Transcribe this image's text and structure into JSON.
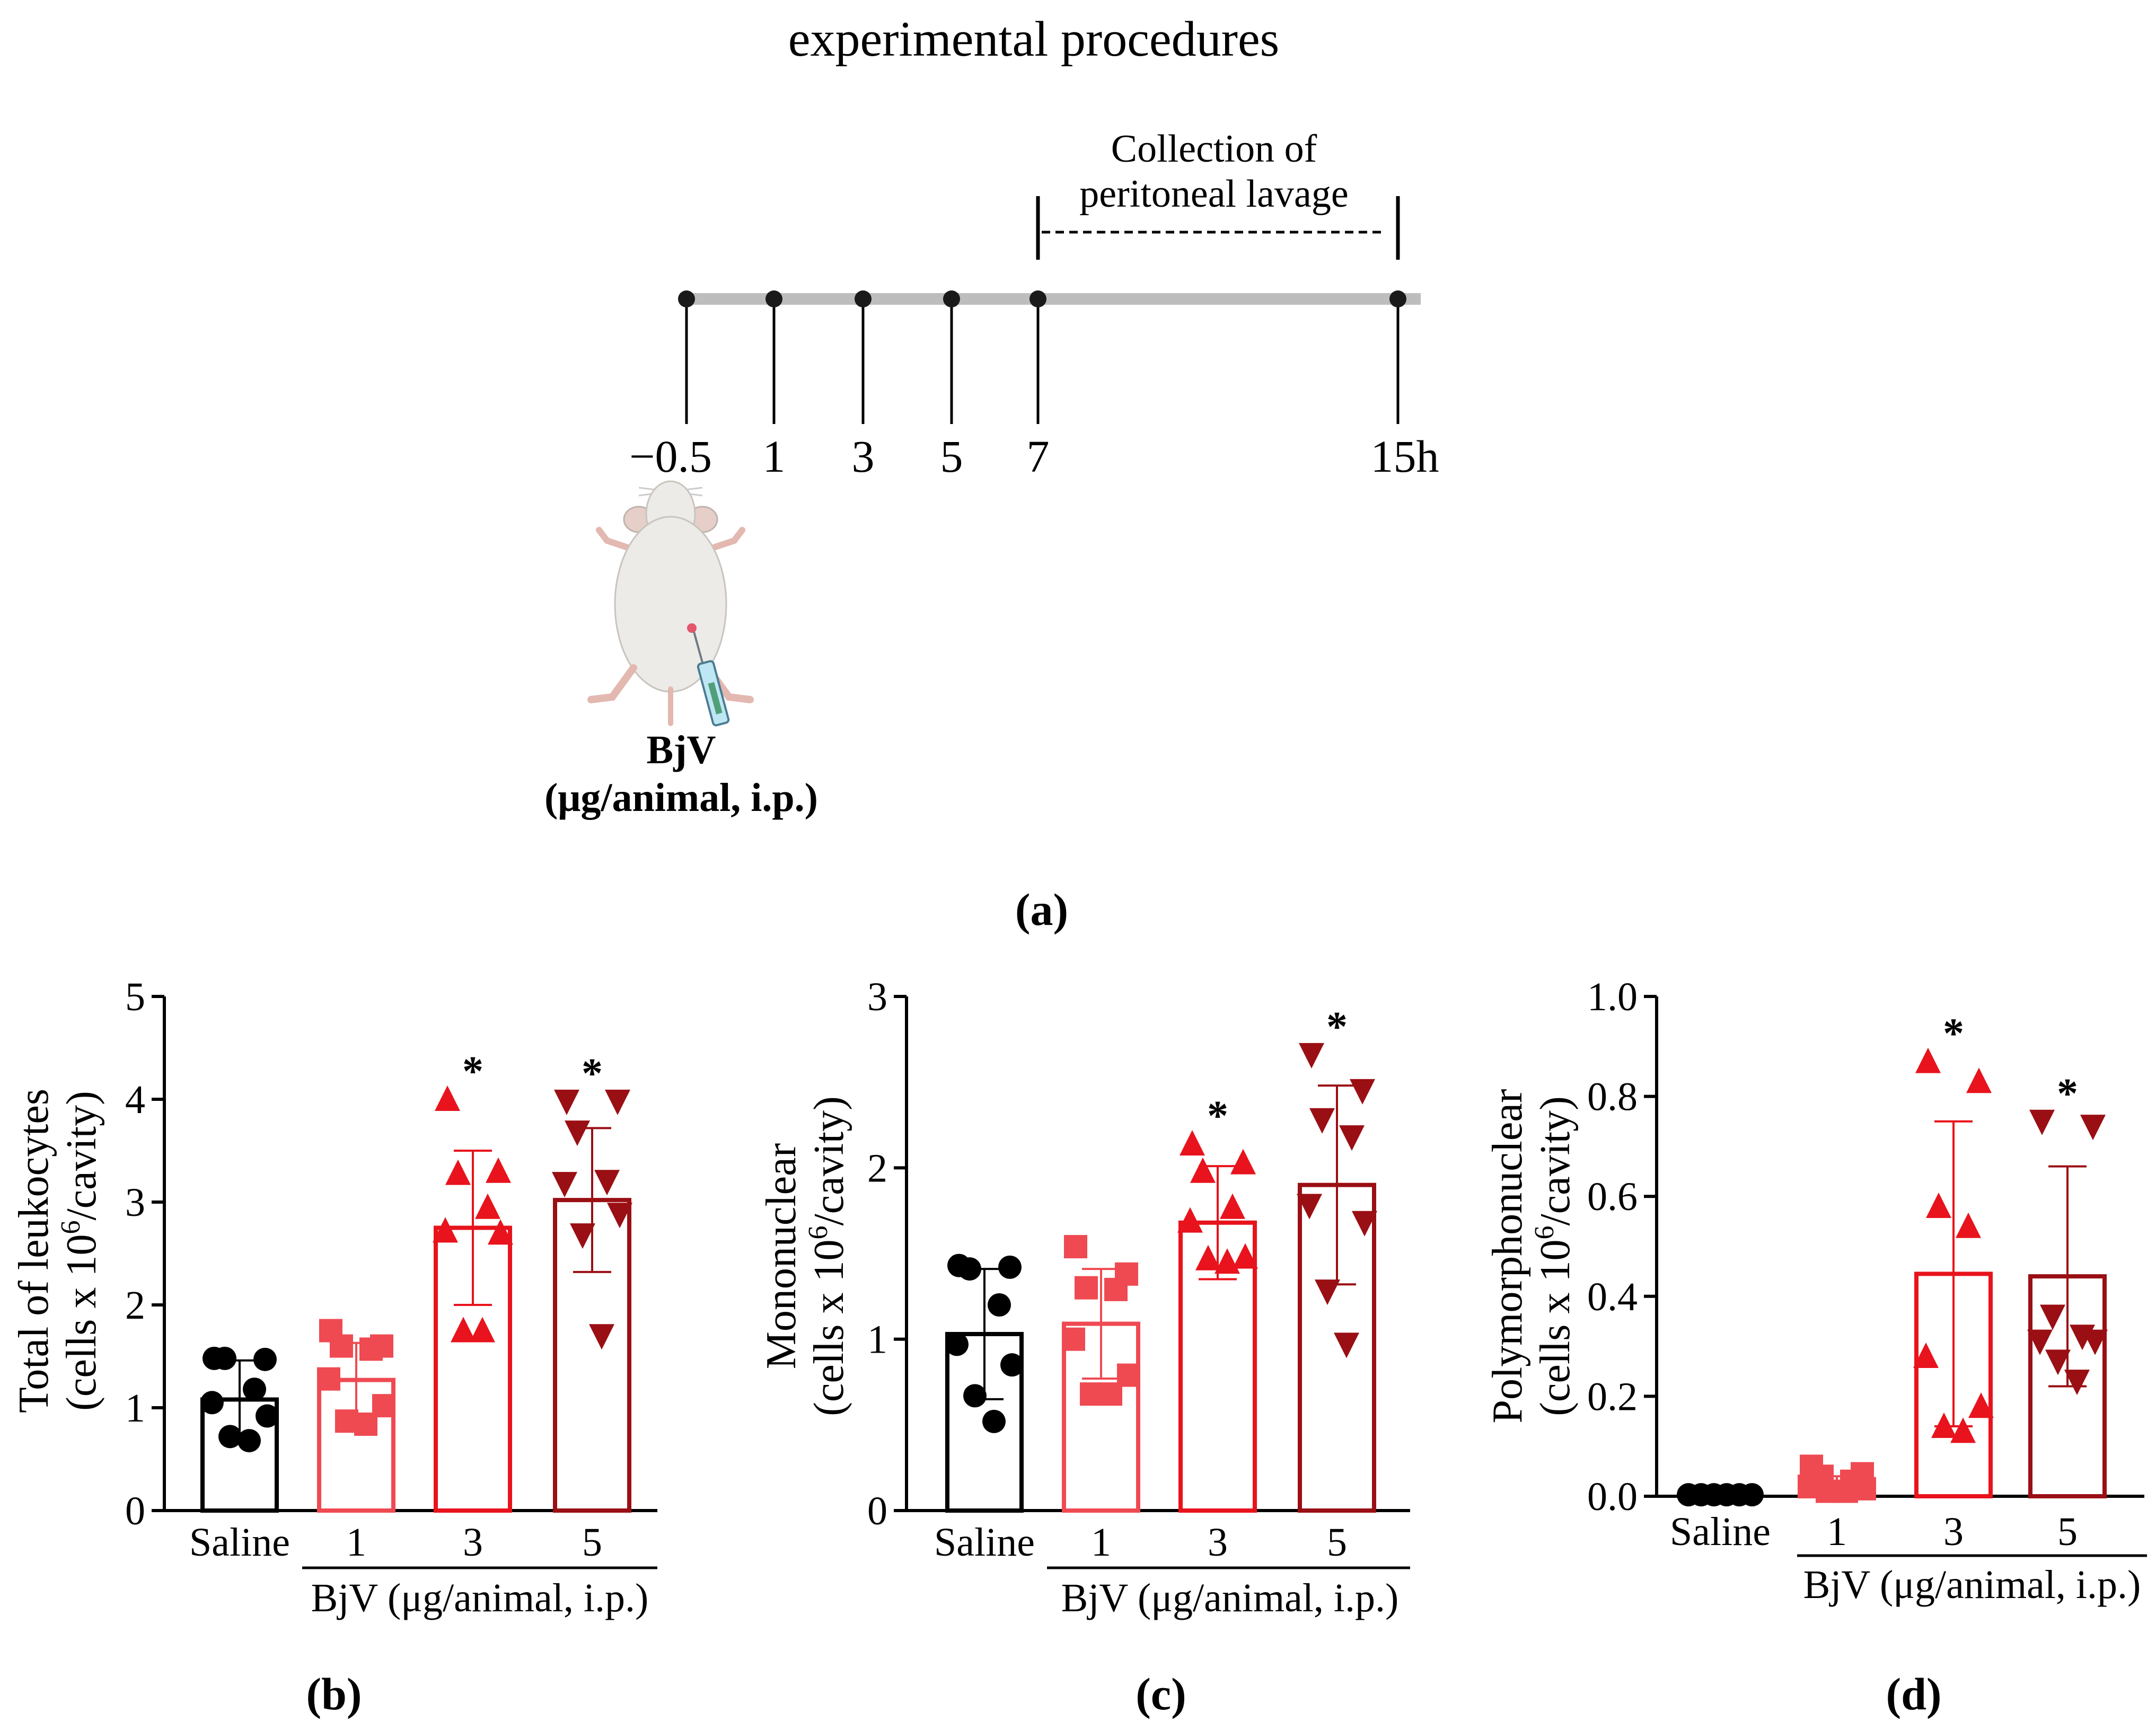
{
  "colors": {
    "black": "#000000",
    "light_red": "#ef4a52",
    "red": "#e8131c",
    "dark_red": "#9a0f14",
    "timeline_gray": "#bdbdbd"
  },
  "panel_a": {
    "title": "experimental procedures",
    "time_points": [
      "−0.5",
      "1",
      "3",
      "5",
      "7",
      "15h"
    ],
    "collection_label_line1": "Collection of",
    "collection_label_line2": "peritoneal lavage",
    "injection_label_line1": "BjV",
    "injection_label_line2": "(μg/animal, i.p.)",
    "panel_label": "(a)"
  },
  "chart_data": [
    {
      "type": "bar",
      "panel_label": "(b)",
      "ylabel_line1": "Total of leukocytes",
      "ylabel_line2_pre": "(cells x 10",
      "ylabel_sup": "6",
      "ylabel_line2_post": "/cavity)",
      "ylim": [
        0,
        5
      ],
      "yticks": [
        "0",
        "1",
        "2",
        "3",
        "4",
        "5"
      ],
      "ytick_values": [
        0,
        1,
        2,
        3,
        4,
        5
      ],
      "categories": [
        "Saline",
        "1",
        "3",
        "5"
      ],
      "group_label": "BjV (μg/animal, i.p.)",
      "series": [
        {
          "name": "Saline",
          "marker": "circle",
          "color": "#000000",
          "mean": 1.08,
          "sd": 0.38,
          "significant": false,
          "points": [
            1.48,
            1.47,
            1.48,
            1.18,
            1.05,
            0.92,
            0.72,
            0.68
          ]
        },
        {
          "name": "1",
          "marker": "square",
          "color": "#ef4a52",
          "mean": 1.27,
          "sd": 0.36,
          "significant": false,
          "points": [
            1.75,
            1.6,
            1.6,
            1.57,
            1.28,
            1.02,
            0.87,
            0.84
          ]
        },
        {
          "name": "3",
          "marker": "triangle-up",
          "color": "#e8131c",
          "mean": 2.75,
          "sd": 0.75,
          "significant": true,
          "points": [
            4.0,
            3.3,
            3.28,
            2.95,
            2.72,
            2.7,
            1.75,
            1.75
          ]
        },
        {
          "name": "5",
          "marker": "triangle-down",
          "color": "#9a0f14",
          "mean": 3.02,
          "sd": 0.7,
          "significant": true,
          "points": [
            3.98,
            3.98,
            3.68,
            3.2,
            3.18,
            2.88,
            2.68,
            1.7
          ]
        }
      ],
      "annotation": "*"
    },
    {
      "type": "bar",
      "panel_label": "(c)",
      "ylabel_line1": "Mononuclear",
      "ylabel_line2_pre": "(cells x 10",
      "ylabel_sup": "6",
      "ylabel_line2_post": "/cavity)",
      "ylim": [
        0,
        3
      ],
      "yticks": [
        "0",
        "1",
        "2",
        "3"
      ],
      "ytick_values": [
        0,
        1,
        2,
        3
      ],
      "categories": [
        "Saline",
        "1",
        "3",
        "5"
      ],
      "group_label": "BjV (μg/animal, i.p.)",
      "series": [
        {
          "name": "Saline",
          "marker": "circle",
          "color": "#000000",
          "mean": 1.03,
          "sd": 0.38,
          "significant": false,
          "points": [
            1.43,
            1.42,
            1.41,
            1.2,
            0.97,
            0.85,
            0.67,
            0.52
          ]
        },
        {
          "name": "1",
          "marker": "square",
          "color": "#ef4a52",
          "mean": 1.09,
          "sd": 0.32,
          "significant": false,
          "points": [
            1.54,
            1.38,
            1.3,
            1.29,
            1.0,
            0.79,
            0.68,
            0.68
          ]
        },
        {
          "name": "3",
          "marker": "triangle-up",
          "color": "#e8131c",
          "mean": 1.68,
          "sd": 0.33,
          "significant": true,
          "points": [
            2.14,
            2.03,
            1.98,
            1.77,
            1.69,
            1.48,
            1.47,
            1.45
          ]
        },
        {
          "name": "5",
          "marker": "triangle-down",
          "color": "#9a0f14",
          "mean": 1.9,
          "sd": 0.58,
          "significant": true,
          "points": [
            2.66,
            2.45,
            2.28,
            2.18,
            1.78,
            1.68,
            1.28,
            0.97
          ]
        }
      ],
      "annotation": "*"
    },
    {
      "type": "bar",
      "panel_label": "(d)",
      "ylabel_line1": "Polymorphonuclear",
      "ylabel_line2_pre": "(cells x 10",
      "ylabel_sup": "6",
      "ylabel_line2_post": "/cavity)",
      "ylim": [
        0,
        1.0
      ],
      "yticks": [
        "0.0",
        "0.2",
        "0.4",
        "0.6",
        "0.8",
        "1.0"
      ],
      "ytick_values": [
        0,
        0.2,
        0.4,
        0.6,
        0.8,
        1.0
      ],
      "categories": [
        "Saline",
        "1",
        "3",
        "5"
      ],
      "group_label": "BjV (μg/animal, i.p.)",
      "series": [
        {
          "name": "Saline",
          "marker": "circle",
          "color": "#000000",
          "mean": 0.0,
          "sd": 0.0,
          "significant": false,
          "points": [
            0.003,
            0.003,
            0.003,
            0.003,
            0.003,
            0.003
          ]
        },
        {
          "name": "1",
          "marker": "square",
          "color": "#ef4a52",
          "mean": 0.025,
          "sd": 0.015,
          "significant": false,
          "points": [
            0.06,
            0.045,
            0.04,
            0.03,
            0.02,
            0.015,
            0.01,
            0.01
          ]
        },
        {
          "name": "3",
          "marker": "triangle-up",
          "color": "#e8131c",
          "mean": 0.445,
          "sd": 0.305,
          "significant": true,
          "points": [
            0.87,
            0.83,
            0.58,
            0.54,
            0.28,
            0.18,
            0.14,
            0.13
          ]
        },
        {
          "name": "5",
          "marker": "triangle-down",
          "color": "#9a0f14",
          "mean": 0.44,
          "sd": 0.22,
          "significant": true,
          "points": [
            0.75,
            0.74,
            0.36,
            0.32,
            0.31,
            0.31,
            0.27,
            0.23
          ]
        }
      ],
      "annotation": "*"
    }
  ]
}
